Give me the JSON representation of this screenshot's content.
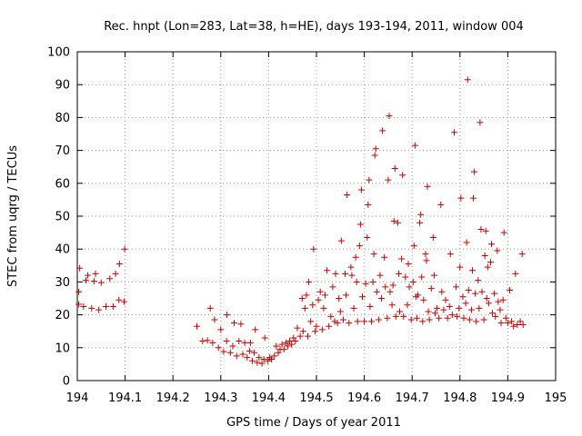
{
  "chart_data": {
    "type": "scatter",
    "title": "Rec. hnpt (Lon=283, Lat=38, h=HE), days 193-194, 2011, window 004",
    "xlabel": "GPS time / Days of year 2011",
    "ylabel": "STEC from uqrg / TECUs",
    "xlim": [
      194,
      195
    ],
    "ylim": [
      0,
      100
    ],
    "xticks": [
      "194",
      "194.1",
      "194.2",
      "194.3",
      "194.4",
      "194.5",
      "194.6",
      "194.7",
      "194.8",
      "194.9",
      "195"
    ],
    "yticks": [
      "0",
      "10",
      "20",
      "30",
      "40",
      "50",
      "60",
      "70",
      "80",
      "90",
      "100"
    ],
    "marker": "+",
    "color": "#cc0000",
    "series": [
      {
        "name": "STEC",
        "points": [
          [
            194.003,
            23.2
          ],
          [
            194.003,
            27.0
          ],
          [
            194.005,
            34.2
          ],
          [
            194.013,
            22.5
          ],
          [
            194.018,
            30.5
          ],
          [
            194.022,
            32.0
          ],
          [
            194.03,
            22.0
          ],
          [
            194.035,
            30.2
          ],
          [
            194.038,
            32.5
          ],
          [
            194.045,
            21.5
          ],
          [
            194.05,
            29.8
          ],
          [
            194.06,
            22.5
          ],
          [
            194.068,
            31.0
          ],
          [
            194.075,
            22.5
          ],
          [
            194.08,
            32.5
          ],
          [
            194.087,
            24.5
          ],
          [
            194.088,
            35.5
          ],
          [
            194.098,
            24.0
          ],
          [
            194.099,
            40.0
          ],
          [
            194.25,
            16.5
          ],
          [
            194.262,
            12.0
          ],
          [
            194.272,
            12.2
          ],
          [
            194.278,
            22.0
          ],
          [
            194.283,
            11.5
          ],
          [
            194.287,
            18.5
          ],
          [
            194.295,
            10.0
          ],
          [
            194.3,
            15.5
          ],
          [
            194.306,
            8.8
          ],
          [
            194.312,
            12.0
          ],
          [
            194.313,
            20.0
          ],
          [
            194.32,
            8.5
          ],
          [
            194.325,
            10.5
          ],
          [
            194.328,
            17.5
          ],
          [
            194.333,
            7.5
          ],
          [
            194.338,
            12.0
          ],
          [
            194.342,
            17.2
          ],
          [
            194.346,
            8.0
          ],
          [
            194.35,
            11.5
          ],
          [
            194.355,
            7.0
          ],
          [
            194.36,
            9.0
          ],
          [
            194.362,
            11.5
          ],
          [
            194.366,
            6.0
          ],
          [
            194.37,
            8.5
          ],
          [
            194.372,
            15.5
          ],
          [
            194.376,
            5.5
          ],
          [
            194.38,
            7.0
          ],
          [
            194.386,
            5.2
          ],
          [
            194.39,
            6.5
          ],
          [
            194.392,
            13.0
          ],
          [
            194.398,
            6.0
          ],
          [
            194.402,
            7.0
          ],
          [
            194.406,
            6.5
          ],
          [
            194.412,
            7.5
          ],
          [
            194.416,
            10.5
          ],
          [
            194.42,
            8.5
          ],
          [
            194.424,
            9.5
          ],
          [
            194.428,
            11.0
          ],
          [
            194.432,
            9.5
          ],
          [
            194.436,
            11.5
          ],
          [
            194.44,
            10.5
          ],
          [
            194.444,
            12.0
          ],
          [
            194.448,
            11.0
          ],
          [
            194.452,
            13.0
          ],
          [
            194.456,
            12.0
          ],
          [
            194.46,
            16.0
          ],
          [
            194.466,
            13.5
          ],
          [
            194.47,
            25.0
          ],
          [
            194.472,
            15.0
          ],
          [
            194.476,
            22.0
          ],
          [
            194.479,
            26.0
          ],
          [
            194.482,
            13.5
          ],
          [
            194.484,
            30.0
          ],
          [
            194.488,
            18.0
          ],
          [
            194.492,
            23.0
          ],
          [
            194.494,
            40.0
          ],
          [
            194.497,
            15.0
          ],
          [
            194.5,
            16.5
          ],
          [
            194.504,
            24.5
          ],
          [
            194.508,
            27.0
          ],
          [
            194.512,
            15.5
          ],
          [
            194.515,
            22.0
          ],
          [
            194.518,
            26.0
          ],
          [
            194.522,
            33.5
          ],
          [
            194.526,
            16.5
          ],
          [
            194.53,
            19.5
          ],
          [
            194.534,
            28.5
          ],
          [
            194.538,
            18.0
          ],
          [
            194.54,
            32.5
          ],
          [
            194.544,
            17.5
          ],
          [
            194.547,
            25.0
          ],
          [
            194.55,
            21.0
          ],
          [
            194.552,
            42.5
          ],
          [
            194.556,
            18.5
          ],
          [
            194.56,
            32.5
          ],
          [
            194.562,
            26.0
          ],
          [
            194.564,
            56.5
          ],
          [
            194.568,
            17.5
          ],
          [
            194.572,
            34.5
          ],
          [
            194.574,
            32.0
          ],
          [
            194.578,
            22.0
          ],
          [
            194.582,
            37.5
          ],
          [
            194.584,
            30.0
          ],
          [
            194.586,
            18.0
          ],
          [
            194.59,
            41.0
          ],
          [
            194.592,
            47.5
          ],
          [
            194.594,
            58.0
          ],
          [
            194.596,
            25.5
          ],
          [
            194.6,
            18.0
          ],
          [
            194.603,
            29.5
          ],
          [
            194.606,
            43.5
          ],
          [
            194.608,
            53.5
          ],
          [
            194.61,
            61.0
          ],
          [
            194.612,
            22.5
          ],
          [
            194.615,
            18.0
          ],
          [
            194.618,
            30.0
          ],
          [
            194.62,
            38.5
          ],
          [
            194.622,
            68.5
          ],
          [
            194.624,
            70.5
          ],
          [
            194.626,
            27.0
          ],
          [
            194.63,
            18.5
          ],
          [
            194.633,
            32.0
          ],
          [
            194.636,
            25.0
          ],
          [
            194.638,
            76.0
          ],
          [
            194.642,
            37.5
          ],
          [
            194.644,
            28.5
          ],
          [
            194.648,
            19.0
          ],
          [
            194.65,
            61.0
          ],
          [
            194.652,
            80.5
          ],
          [
            194.654,
            27.0
          ],
          [
            194.658,
            23.0
          ],
          [
            194.66,
            29.0
          ],
          [
            194.662,
            48.5
          ],
          [
            194.664,
            64.5
          ],
          [
            194.666,
            19.5
          ],
          [
            194.67,
            48.0
          ],
          [
            194.672,
            32.5
          ],
          [
            194.674,
            21.0
          ],
          [
            194.678,
            37.0
          ],
          [
            194.68,
            62.5
          ],
          [
            194.682,
            19.5
          ],
          [
            194.686,
            31.5
          ],
          [
            194.69,
            23.0
          ],
          [
            194.692,
            35.5
          ],
          [
            194.694,
            28.5
          ],
          [
            194.698,
            18.5
          ],
          [
            194.702,
            30.0
          ],
          [
            194.704,
            41.0
          ],
          [
            194.706,
            71.5
          ],
          [
            194.708,
            25.5
          ],
          [
            194.71,
            19.0
          ],
          [
            194.712,
            26.0
          ],
          [
            194.716,
            48.0
          ],
          [
            194.718,
            50.5
          ],
          [
            194.72,
            31.5
          ],
          [
            194.722,
            18.0
          ],
          [
            194.724,
            24.5
          ],
          [
            194.728,
            38.5
          ],
          [
            194.73,
            36.5
          ],
          [
            194.732,
            59.0
          ],
          [
            194.734,
            21.0
          ],
          [
            194.736,
            18.5
          ],
          [
            194.74,
            28.0
          ],
          [
            194.744,
            43.5
          ],
          [
            194.746,
            32.0
          ],
          [
            194.748,
            20.5
          ],
          [
            194.752,
            22.0
          ],
          [
            194.756,
            19.0
          ],
          [
            194.76,
            53.5
          ],
          [
            194.762,
            27.0
          ],
          [
            194.766,
            21.5
          ],
          [
            194.77,
            24.5
          ],
          [
            194.774,
            19.0
          ],
          [
            194.778,
            22.5
          ],
          [
            194.78,
            38.5
          ],
          [
            194.784,
            20.0
          ],
          [
            194.788,
            75.5
          ],
          [
            194.792,
            28.5
          ],
          [
            194.794,
            19.5
          ],
          [
            194.798,
            22.0
          ],
          [
            194.8,
            34.5
          ],
          [
            194.802,
            55.5
          ],
          [
            194.806,
            25.5
          ],
          [
            194.808,
            19.0
          ],
          [
            194.812,
            23.5
          ],
          [
            194.814,
            42.0
          ],
          [
            194.816,
            91.5
          ],
          [
            194.818,
            27.5
          ],
          [
            194.82,
            18.5
          ],
          [
            194.824,
            21.5
          ],
          [
            194.826,
            33.5
          ],
          [
            194.828,
            55.5
          ],
          [
            194.83,
            63.5
          ],
          [
            194.832,
            26.5
          ],
          [
            194.834,
            18.0
          ],
          [
            194.838,
            30.5
          ],
          [
            194.84,
            22.0
          ],
          [
            194.842,
            78.5
          ],
          [
            194.844,
            46.0
          ],
          [
            194.846,
            27.0
          ],
          [
            194.85,
            18.5
          ],
          [
            194.852,
            38.0
          ],
          [
            194.854,
            45.5
          ],
          [
            194.856,
            25.0
          ],
          [
            194.858,
            34.5
          ],
          [
            194.86,
            23.5
          ],
          [
            194.864,
            36.0
          ],
          [
            194.866,
            41.5
          ],
          [
            194.868,
            20.5
          ],
          [
            194.872,
            26.5
          ],
          [
            194.874,
            19.5
          ],
          [
            194.878,
            39.5
          ],
          [
            194.88,
            24.0
          ],
          [
            194.884,
            21.5
          ],
          [
            194.886,
            17.5
          ],
          [
            194.89,
            24.5
          ],
          [
            194.892,
            45.0
          ],
          [
            194.896,
            19.0
          ],
          [
            194.9,
            17.5
          ],
          [
            194.904,
            27.5
          ],
          [
            194.908,
            18.0
          ],
          [
            194.912,
            16.5
          ],
          [
            194.916,
            32.5
          ],
          [
            194.92,
            17.0
          ],
          [
            194.926,
            18.0
          ],
          [
            194.93,
            38.5
          ],
          [
            194.932,
            17.0
          ]
        ]
      }
    ]
  }
}
